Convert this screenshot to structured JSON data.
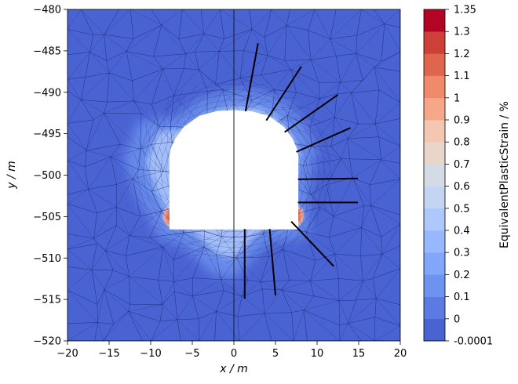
{
  "chart_data": {
    "type": "heatmap",
    "xlabel": "x / m",
    "ylabel": "y / m",
    "xlim": [
      -20,
      20
    ],
    "ylim": [
      -520,
      -480
    ],
    "xticks": [
      -20,
      -15,
      -10,
      -5,
      0,
      5,
      10,
      15,
      20
    ],
    "yticks": [
      -520,
      -515,
      -510,
      -505,
      -500,
      -495,
      -490,
      -485,
      -480
    ],
    "grid": false,
    "colorbar": {
      "label": "EquivalentPlasticStrain / %",
      "tick_labels": [
        "-0.0001",
        "0",
        "0.1",
        "0.2",
        "0.3",
        "0.4",
        "0.5",
        "0.6",
        "0.7",
        "0.8",
        "0.9",
        "1",
        "1.1",
        "1.2",
        "1.3",
        "1.35"
      ],
      "colors": [
        "#3b4cc0",
        "#4a63d3",
        "#5b7be3",
        "#6d92ef",
        "#82a6f9",
        "#97b8ff",
        "#aec8fc",
        "#c4d5f3",
        "#d5dbe5",
        "#e8d6cb",
        "#f3c7b1",
        "#f6a689",
        "#ef8a6a",
        "#e0654f",
        "#cc4038",
        "#b40426"
      ]
    },
    "tunnel_outline": [
      [
        -7.7,
        -506.5
      ],
      [
        7.7,
        -506.5
      ],
      [
        7.7,
        -497.8
      ],
      [
        7.6,
        -497.0
      ],
      [
        7.0,
        -495.6
      ],
      [
        6.0,
        -494.2
      ],
      [
        4.2,
        -492.9
      ],
      [
        2.0,
        -492.3
      ],
      [
        0,
        -492.2
      ],
      [
        -2.0,
        -492.3
      ],
      [
        -4.2,
        -492.9
      ],
      [
        -6.0,
        -494.2
      ],
      [
        -7.0,
        -495.6
      ],
      [
        -7.6,
        -497.0
      ],
      [
        -7.7,
        -497.8
      ]
    ],
    "boreholes": [
      [
        [
          1.4,
          -492.3
        ],
        [
          2.9,
          -484.1
        ]
      ],
      [
        [
          3.9,
          -493.4
        ],
        [
          8.1,
          -486.9
        ]
      ],
      [
        [
          6.1,
          -494.8
        ],
        [
          12.5,
          -490.3
        ]
      ],
      [
        [
          7.5,
          -497.2
        ],
        [
          14.0,
          -494.3
        ]
      ],
      [
        [
          7.7,
          -500.5
        ],
        [
          14.9,
          -500.4
        ]
      ],
      [
        [
          7.7,
          -503.3
        ],
        [
          14.9,
          -503.3
        ]
      ],
      [
        [
          6.9,
          -505.6
        ],
        [
          12.0,
          -511.0
        ]
      ],
      [
        [
          4.3,
          -506.5
        ],
        [
          5.0,
          -514.5
        ]
      ],
      [
        [
          1.3,
          -506.5
        ],
        [
          1.3,
          -514.9
        ]
      ]
    ],
    "strain_zone": [
      [
        -7.0,
        -493.0
      ],
      [
        -4.0,
        -490.7
      ],
      [
        0,
        -489.6
      ],
      [
        3.5,
        -489.8
      ],
      [
        6.0,
        -490.8
      ],
      [
        8.5,
        -493.5
      ],
      [
        10.0,
        -497.0
      ],
      [
        9.3,
        -499.5
      ],
      [
        9.0,
        -503.0
      ],
      [
        9.0,
        -507.0
      ],
      [
        7.0,
        -508.0
      ],
      [
        5.0,
        -507.8
      ],
      [
        3.0,
        -509.3
      ],
      [
        0,
        -512.5
      ],
      [
        -2.5,
        -512.0
      ],
      [
        -6.0,
        -508.6
      ],
      [
        -9.0,
        -507.5
      ],
      [
        -11.8,
        -502.2
      ],
      [
        -13.2,
        -498.0
      ],
      [
        -11.5,
        -493.5
      ]
    ],
    "hotspots": [
      {
        "x": -7.4,
        "y": -505.0,
        "value": 1.35
      },
      {
        "x": 7.3,
        "y": -504.9,
        "value": 1.3
      }
    ]
  }
}
